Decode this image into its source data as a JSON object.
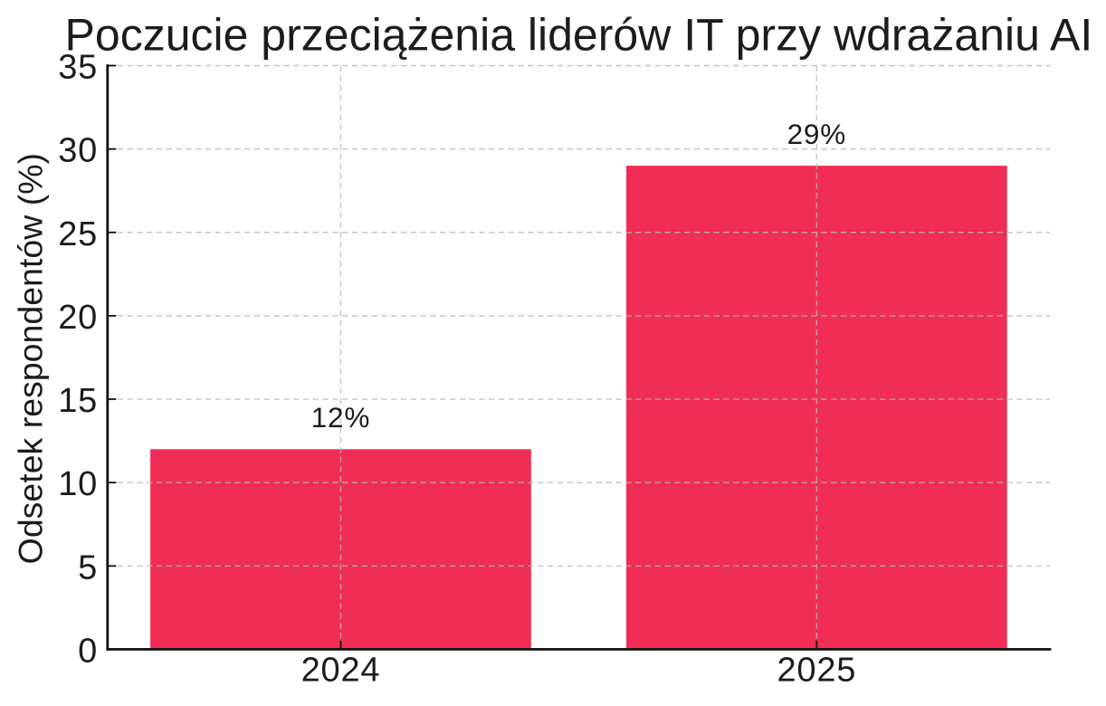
{
  "chart_data": {
    "type": "bar",
    "title": "Poczucie przeciążenia liderów IT przy wdrażaniu AI",
    "xlabel": "",
    "ylabel": "Odsetek respondentów (%)",
    "categories": [
      "2024",
      "2025"
    ],
    "values": [
      12,
      29
    ],
    "bar_labels": [
      "12%",
      "29%"
    ],
    "ylim": [
      0,
      35
    ],
    "yticks": [
      0,
      5,
      10,
      15,
      20,
      25,
      30,
      35
    ],
    "grid": "dashed horizontal lines at y ticks and vertical lines at category centers, drawn above bars",
    "legend": "none",
    "colors": {
      "bar": "#f02d55",
      "grid": "#b9b9b9",
      "spine": "#111111",
      "tick": "#111111",
      "text": "#1c1c1c",
      "background": "#ffffff"
    }
  }
}
